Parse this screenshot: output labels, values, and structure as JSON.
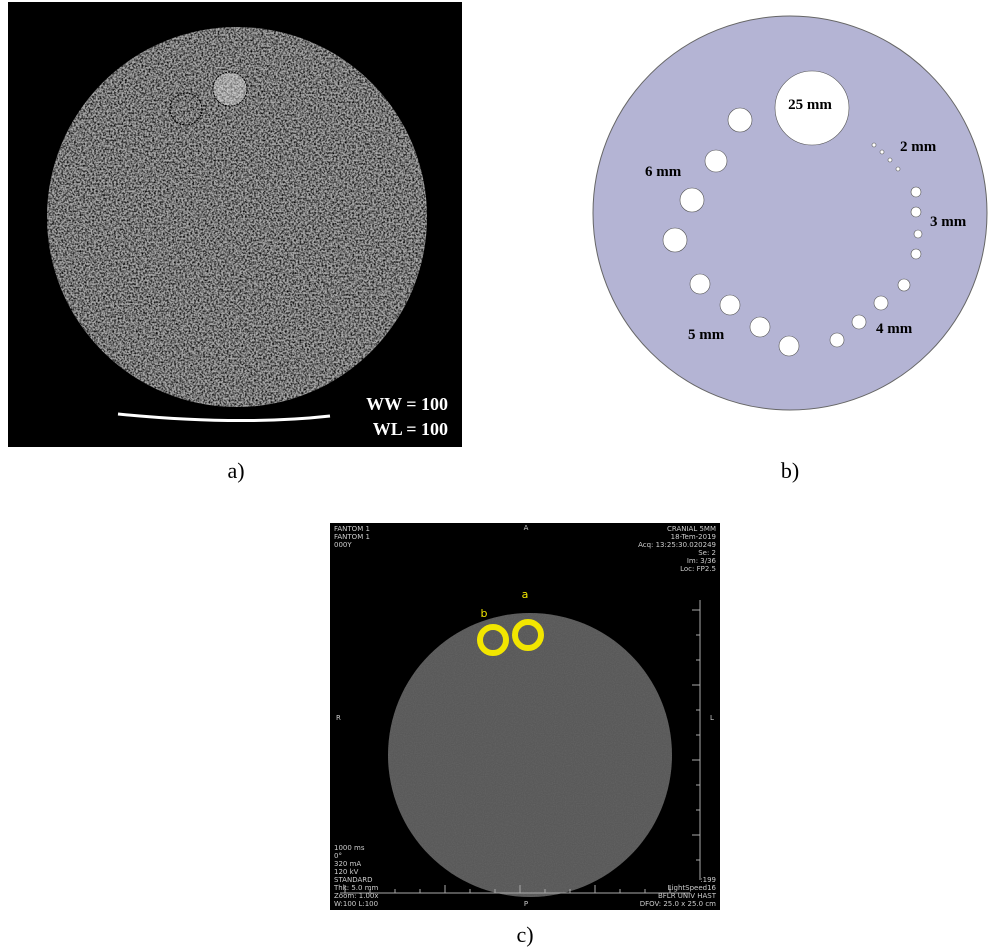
{
  "panels": [
    {
      "caption": "a)",
      "annotations": [
        "WW = 100",
        "WL = 100"
      ]
    },
    {
      "caption": "b)",
      "labels": [
        "25 mm",
        "2 mm",
        "6 mm",
        "3 mm",
        "5 mm",
        "4 mm"
      ]
    },
    {
      "caption": "c)",
      "top_left": [
        "FANTOM 1",
        "FANTOM 1",
        "000Y"
      ],
      "top_center": "A",
      "top_right": [
        "CRANIAL 5MM",
        "18-Tem-2019",
        "Acq: 13:25:30.020249",
        "Se: 2",
        "Im: 3/36",
        "Loc: FP2.5"
      ],
      "roi_labels": [
        "a",
        "b"
      ],
      "left": "R",
      "right": "L",
      "bottom": "P",
      "bottom_left": [
        "1000 ms",
        "0°",
        "320 mA",
        "120 kV",
        "STANDARD",
        "Thk: 5.0 mm",
        "Zoom: 1.00x",
        "W:100 L:100"
      ],
      "bottom_right": [
        ":199",
        "LightSpeed16",
        "BFLR UNIV HAST",
        "DFOV: 25.0 x 25.0 cm"
      ]
    }
  ]
}
